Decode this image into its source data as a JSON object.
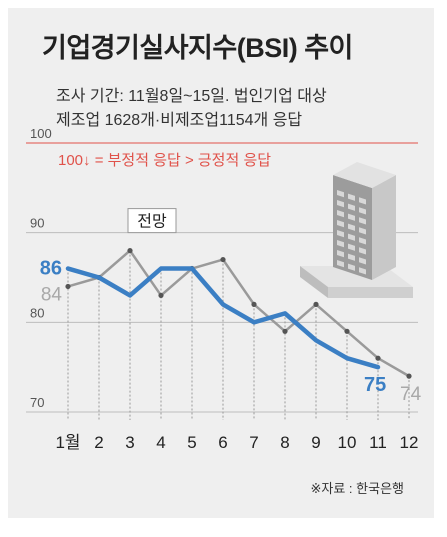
{
  "title": "기업경기실사지수(BSI) 추이",
  "subtitle_lines": [
    "조사 기간: 11월8일~15일. 법인기업 대상",
    "제조업 1628개·비제조업1154개 응답"
  ],
  "note": "100↓ = 부정적 응답 > 긍정적 응답",
  "forecast_label": "전망",
  "source": "※자료 : 한국은행",
  "colors": {
    "actual": "#3b7fc4",
    "forecast": "#9a9a9a",
    "note": "#e0524a",
    "background": "#efefef"
  },
  "chart_data": {
    "type": "line",
    "x": [
      "1월",
      "2",
      "3",
      "4",
      "5",
      "6",
      "7",
      "8",
      "9",
      "10",
      "11",
      "12"
    ],
    "ylim": [
      70,
      100
    ],
    "yticks": [
      100,
      90,
      80,
      70
    ],
    "grid": true,
    "series": [
      {
        "name": "",
        "role": "actual",
        "values": [
          86,
          85,
          83,
          86,
          86,
          82,
          80,
          81,
          78,
          76,
          75,
          null
        ]
      },
      {
        "name": "",
        "role": "forecast",
        "values": [
          84,
          85,
          88,
          83,
          86,
          87,
          82,
          79,
          82,
          79,
          76,
          74
        ]
      }
    ],
    "data_labels": [
      {
        "series": "actual",
        "index": 0,
        "text": "86"
      },
      {
        "series": "forecast",
        "index": 0,
        "text": "84"
      },
      {
        "series": "actual",
        "index": 10,
        "text": "75"
      },
      {
        "series": "forecast",
        "index": 11,
        "text": "74"
      }
    ]
  }
}
